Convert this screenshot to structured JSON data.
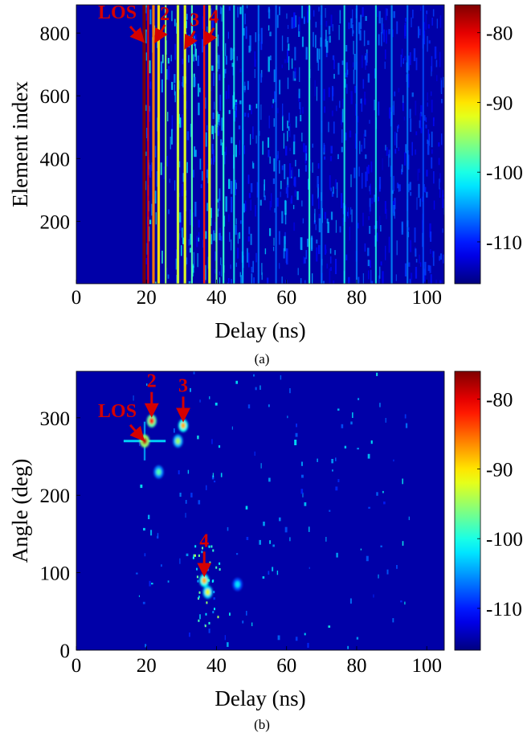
{
  "chart_data": [
    {
      "type": "heatmap",
      "panel_label": "(a)",
      "xlabel": "Delay (ns)",
      "ylabel": "Element index",
      "xlim": [
        0,
        105
      ],
      "ylim": [
        1,
        890
      ],
      "xticks": [
        0,
        20,
        40,
        60,
        80,
        100
      ],
      "yticks": [
        200,
        400,
        600,
        800
      ],
      "colorbar": {
        "colormap": "jet",
        "range": [
          -116,
          -76
        ],
        "ticks": [
          -80,
          -90,
          -100,
          -110
        ],
        "tick_labels": [
          "-80",
          "-90",
          "-100",
          "-110"
        ]
      },
      "grid": false,
      "vertical_bands": [
        {
          "delay": 19.5,
          "level": -76
        },
        {
          "delay": 20.5,
          "level": -80
        },
        {
          "delay": 22.0,
          "level": -86
        },
        {
          "delay": 23.5,
          "level": -90
        },
        {
          "delay": 25.5,
          "level": -95
        },
        {
          "delay": 29.0,
          "level": -93
        },
        {
          "delay": 31.0,
          "level": -92
        },
        {
          "delay": 33.0,
          "level": -98
        },
        {
          "delay": 36.5,
          "level": -82
        },
        {
          "delay": 38.0,
          "level": -92
        },
        {
          "delay": 40.0,
          "level": -97
        },
        {
          "delay": 42.0,
          "level": -99
        },
        {
          "delay": 45.0,
          "level": -100
        },
        {
          "delay": 47.5,
          "level": -103
        },
        {
          "delay": 52.0,
          "level": -106
        },
        {
          "delay": 57.0,
          "level": -107
        },
        {
          "delay": 66.5,
          "level": -99
        },
        {
          "delay": 70.0,
          "level": -106
        },
        {
          "delay": 76.5,
          "level": -100
        },
        {
          "delay": 80.0,
          "level": -106
        },
        {
          "delay": 85.5,
          "level": -100
        },
        {
          "delay": 90.0,
          "level": -105
        },
        {
          "delay": 94.5,
          "level": -106
        },
        {
          "delay": 99.0,
          "level": -108
        }
      ],
      "annotations": [
        {
          "text": "LOS",
          "delay": 19.5,
          "element": 770
        },
        {
          "text": "2",
          "delay": 22.5,
          "element": 770
        },
        {
          "text": "3",
          "delay": 31.0,
          "element": 750
        },
        {
          "text": "4",
          "delay": 36.5,
          "element": 760
        }
      ]
    },
    {
      "type": "heatmap",
      "panel_label": "(b)",
      "xlabel": "Delay (ns)",
      "ylabel": "Angle (deg)",
      "xlim": [
        0,
        105
      ],
      "ylim": [
        0,
        360
      ],
      "xticks": [
        0,
        20,
        40,
        60,
        80,
        100
      ],
      "yticks": [
        0,
        100,
        200,
        300
      ],
      "colorbar": {
        "colormap": "jet",
        "range": [
          -116,
          -76
        ],
        "ticks": [
          -80,
          -90,
          -100,
          -110
        ],
        "tick_labels": [
          "-80",
          "-90",
          "-100",
          "-110"
        ]
      },
      "grid": false,
      "peaks": [
        {
          "label": "LOS",
          "delay": 19.5,
          "angle": 270,
          "level": -78
        },
        {
          "label": "2",
          "delay": 21.5,
          "angle": 296,
          "level": -82
        },
        {
          "label": "3",
          "delay": 30.5,
          "angle": 290,
          "level": -88
        },
        {
          "label": "",
          "delay": 29.0,
          "angle": 270,
          "level": -95
        },
        {
          "label": "",
          "delay": 23.5,
          "angle": 230,
          "level": -98
        },
        {
          "label": "4",
          "delay": 36.5,
          "angle": 90,
          "level": -88
        },
        {
          "label": "",
          "delay": 37.5,
          "angle": 75,
          "level": -92
        },
        {
          "label": "",
          "delay": 46.0,
          "angle": 85,
          "level": -102
        }
      ],
      "annotations": [
        {
          "text": "LOS",
          "delay": 19.5,
          "angle": 270
        },
        {
          "text": "2",
          "delay": 21.5,
          "angle": 296
        },
        {
          "text": "3",
          "delay": 30.5,
          "angle": 290
        },
        {
          "text": "4",
          "delay": 36.5,
          "angle": 90
        }
      ]
    }
  ]
}
